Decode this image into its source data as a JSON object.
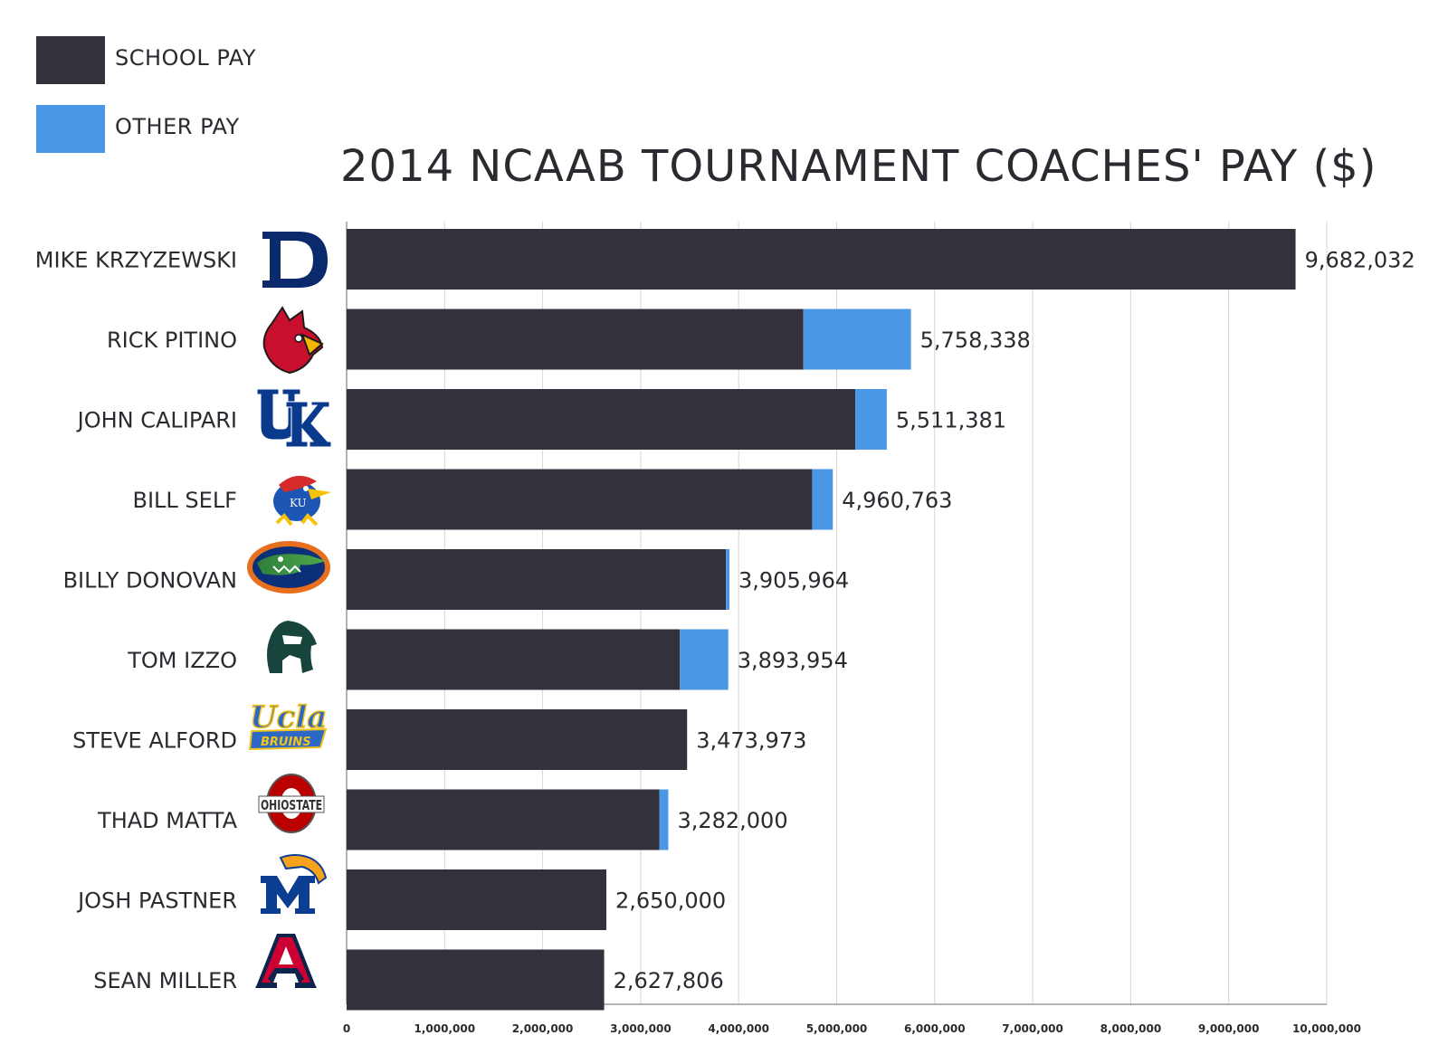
{
  "legend": {
    "school_label": "SCHOOL PAY",
    "other_label": "OTHER PAY"
  },
  "colors": {
    "school": "#33323c",
    "other": "#4a97e6",
    "grid": "#d6d6d6",
    "text": "#2a2a30"
  },
  "chart_data": {
    "type": "bar",
    "orientation": "horizontal",
    "stacked": true,
    "title": "2014 NCAAB TOURNAMENT COACHES' PAY ($)",
    "xlabel": "",
    "ylabel": "",
    "xlim": [
      0,
      10000000
    ],
    "grid": true,
    "legend_position": "top-left",
    "x_ticks": [
      0,
      1000000,
      2000000,
      3000000,
      4000000,
      5000000,
      6000000,
      7000000,
      8000000,
      9000000,
      10000000
    ],
    "x_tick_labels": [
      "0",
      "1,000,000",
      "2,000,000",
      "3,000,000",
      "4,000,000",
      "5,000,000",
      "6,000,000",
      "7,000,000",
      "8,000,000",
      "9,000,000",
      "10,000,000"
    ],
    "categories": [
      "MIKE KRZYZEWSKI",
      "RICK PITINO",
      "JOHN CALIPARI",
      "BILL SELF",
      "BILLY DONOVAN",
      "TOM IZZO",
      "STEVE ALFORD",
      "THAD MATTA",
      "JOSH PASTNER",
      "SEAN MILLER"
    ],
    "logos": [
      "duke-logo",
      "louisville-logo",
      "kentucky-logo",
      "kansas-logo",
      "florida-logo",
      "michigan-state-logo",
      "ucla-logo",
      "ohio-state-logo",
      "memphis-logo",
      "arizona-logo"
    ],
    "series": [
      {
        "name": "SCHOOL PAY",
        "values": [
          9682032,
          4660000,
          5190000,
          4750000,
          3870000,
          3400000,
          3473973,
          3190000,
          2650000,
          2627806
        ]
      },
      {
        "name": "OTHER PAY",
        "values": [
          0,
          1098338,
          321381,
          210763,
          35964,
          493954,
          0,
          92000,
          0,
          0
        ]
      }
    ],
    "totals": [
      9682032,
      5758338,
      5511381,
      4960763,
      3905964,
      3893954,
      3473973,
      3282000,
      2650000,
      2627806
    ],
    "total_labels": [
      "9,682,032",
      "5,758,338",
      "5,511,381",
      "4,960,763",
      "3,905,964",
      "3,893,954",
      "3,473,973",
      "3,282,000",
      "2,650,000",
      "2,627,806"
    ]
  }
}
